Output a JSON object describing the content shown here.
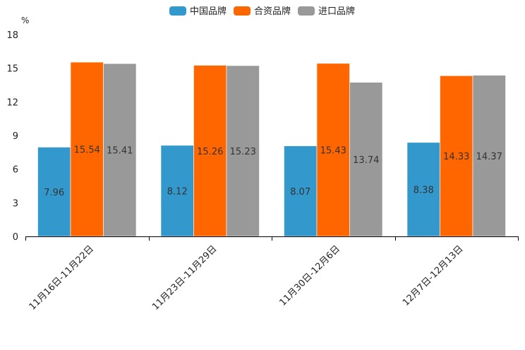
{
  "chart_data": {
    "type": "bar",
    "title": "",
    "xlabel": "",
    "ylabel": "%",
    "ylim": [
      0,
      18
    ],
    "yticks": [
      0,
      3,
      6,
      9,
      12,
      15,
      18
    ],
    "grid": false,
    "legend_position": "top-center",
    "categories": [
      "11月16日-11月22日",
      "11月23日-11月29日",
      "11月30日-12月6日",
      "12月7日-12月13日"
    ],
    "series": [
      {
        "name": "中国品牌",
        "color": "#3399cc",
        "values": [
          7.96,
          8.12,
          8.07,
          8.38
        ],
        "labels": [
          "7.96",
          "8.12",
          "8.07",
          "8.38"
        ]
      },
      {
        "name": "合资品牌",
        "color": "#ff6600",
        "values": [
          15.54,
          15.26,
          15.43,
          14.33
        ],
        "labels": [
          "15.54",
          "15.26",
          "15.43",
          "14.33"
        ]
      },
      {
        "name": "进口品牌",
        "color": "#999999",
        "values": [
          15.41,
          15.23,
          13.74,
          14.37
        ],
        "labels": [
          "15.41",
          "15.23",
          "13.74",
          "14.37"
        ]
      }
    ]
  }
}
